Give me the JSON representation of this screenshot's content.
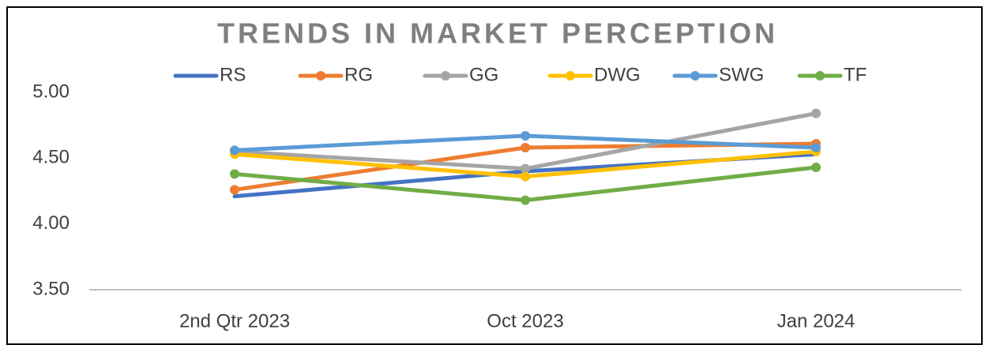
{
  "chart_data": {
    "type": "line",
    "title": "TRENDS IN MARKET PERCEPTION",
    "categories": [
      "2nd Qtr 2023",
      "Oct 2023",
      "Jan 2024"
    ],
    "series": [
      {
        "name": "RS",
        "color": "#4472c4",
        "markers": false,
        "values": [
          4.21,
          4.4,
          4.53
        ]
      },
      {
        "name": "RG",
        "color": "#ed7d31",
        "markers": true,
        "values": [
          4.26,
          4.58,
          4.61
        ]
      },
      {
        "name": "GG",
        "color": "#a5a5a5",
        "markers": true,
        "values": [
          4.55,
          4.42,
          4.84
        ]
      },
      {
        "name": "DWG",
        "color": "#ffc000",
        "markers": true,
        "values": [
          4.53,
          4.36,
          4.55
        ]
      },
      {
        "name": "SWG",
        "color": "#5b9bd5",
        "markers": true,
        "values": [
          4.56,
          4.67,
          4.58
        ]
      },
      {
        "name": "TF",
        "color": "#70ad47",
        "markers": true,
        "values": [
          4.38,
          4.18,
          4.43
        ]
      }
    ],
    "ylim": [
      3.5,
      5.0
    ],
    "yticks": [
      {
        "value": 3.5,
        "label": "3.50"
      },
      {
        "value": 4.0,
        "label": "4.00"
      },
      {
        "value": 4.5,
        "label": "4.50"
      },
      {
        "value": 5.0,
        "label": "5.00"
      }
    ],
    "grid": false,
    "legend": "top"
  }
}
